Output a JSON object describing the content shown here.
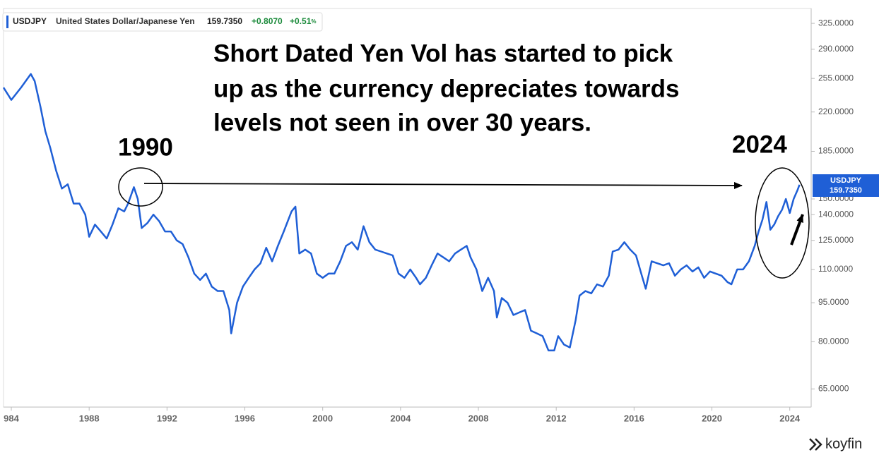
{
  "chart_data": {
    "type": "line",
    "header": {
      "symbol": "USDJPY",
      "name": "United States Dollar/Japanese Yen",
      "price": "159.7350",
      "change": "+0.8070",
      "change_pct": "+0.51",
      "pct_sign": "%"
    },
    "annotation": [
      "Short Dated Yen Vol has started to pick",
      "up as the currency depreciates towards",
      "levels not seen in over 30 years."
    ],
    "label_left": "1990",
    "label_right": "2024",
    "price_tag": {
      "symbol": "USDJPY",
      "price": "159.7350"
    },
    "brand": "koyfin",
    "log_y": true,
    "xlim": [
      1983.6,
      2025.1
    ],
    "ylim": [
      60,
      347
    ],
    "xticks": [
      {
        "value": 1984,
        "label": "984"
      },
      1988,
      1992,
      1996,
      2000,
      2004,
      2008,
      2012,
      2016,
      2020,
      2024
    ],
    "yticks": [
      {
        "value": 65,
        "label": "65.0000"
      },
      {
        "value": 80,
        "label": "80.0000"
      },
      {
        "value": 95,
        "label": "95.0000"
      },
      {
        "value": 110,
        "label": "110.0000"
      },
      {
        "value": 125,
        "label": "125.0000"
      },
      {
        "value": 140,
        "label": "140.0000"
      },
      {
        "value": 150,
        "label": "150.0000"
      },
      {
        "value": 185,
        "label": "185.0000"
      },
      {
        "value": 220,
        "label": "220.0000"
      },
      {
        "value": 255,
        "label": "255.0000"
      },
      {
        "value": 290,
        "label": "290.0000"
      },
      {
        "value": 325,
        "label": "325.0000"
      }
    ],
    "x": [
      1983.6,
      1984.0,
      1984.5,
      1985.0,
      1985.2,
      1985.5,
      1985.75,
      1986.0,
      1986.3,
      1986.6,
      1986.9,
      1987.2,
      1987.5,
      1987.8,
      1988.0,
      1988.3,
      1988.6,
      1988.9,
      1989.2,
      1989.5,
      1989.8,
      1990.0,
      1990.3,
      1990.5,
      1990.7,
      1991.0,
      1991.3,
      1991.6,
      1991.9,
      1992.2,
      1992.5,
      1992.8,
      1993.1,
      1993.4,
      1993.7,
      1994.0,
      1994.3,
      1994.6,
      1994.9,
      1995.2,
      1995.3,
      1995.6,
      1995.9,
      1996.2,
      1996.5,
      1996.8,
      1997.1,
      1997.4,
      1997.7,
      1998.0,
      1998.4,
      1998.6,
      1998.8,
      1999.1,
      1999.4,
      1999.7,
      2000.0,
      2000.3,
      2000.6,
      2000.9,
      2001.2,
      2001.5,
      2001.8,
      2002.1,
      2002.4,
      2002.7,
      2003.0,
      2003.3,
      2003.6,
      2003.9,
      2004.2,
      2004.5,
      2004.8,
      2005.0,
      2005.3,
      2005.6,
      2005.9,
      2006.2,
      2006.5,
      2006.8,
      2007.1,
      2007.4,
      2007.6,
      2007.9,
      2008.2,
      2008.5,
      2008.8,
      2008.95,
      2009.2,
      2009.5,
      2009.8,
      2010.1,
      2010.4,
      2010.7,
      2011.0,
      2011.3,
      2011.6,
      2011.9,
      2012.1,
      2012.4,
      2012.7,
      2013.0,
      2013.2,
      2013.5,
      2013.8,
      2014.1,
      2014.4,
      2014.7,
      2014.9,
      2015.2,
      2015.5,
      2015.8,
      2016.1,
      2016.4,
      2016.6,
      2016.9,
      2017.2,
      2017.5,
      2017.8,
      2018.1,
      2018.4,
      2018.7,
      2019.0,
      2019.3,
      2019.6,
      2019.9,
      2020.2,
      2020.5,
      2020.8,
      2021.0,
      2021.3,
      2021.6,
      2021.9,
      2022.2,
      2022.4,
      2022.6,
      2022.8,
      2023.0,
      2023.2,
      2023.4,
      2023.6,
      2023.8,
      2024.0,
      2024.2,
      2024.4,
      2024.5
    ],
    "series": [
      {
        "name": "USDJPY",
        "color": "#1f5fd6",
        "values": [
          245,
          232,
          245,
          260,
          252,
          225,
          202,
          188,
          170,
          157,
          160,
          147,
          147,
          140,
          127,
          134,
          130,
          126,
          134,
          144,
          142,
          147,
          158,
          150,
          132,
          135,
          140,
          136,
          130,
          130,
          125,
          123,
          116,
          108,
          105,
          108,
          102,
          100,
          100,
          92,
          83,
          95,
          102,
          106,
          110,
          113,
          121,
          114,
          122,
          130,
          142,
          145,
          118,
          120,
          118,
          108,
          106,
          108,
          108,
          114,
          122,
          124,
          120,
          133,
          124,
          120,
          119,
          118,
          117,
          108,
          106,
          110,
          106,
          103,
          106,
          112,
          118,
          116,
          114,
          118,
          120,
          122,
          116,
          110,
          100,
          106,
          100,
          89,
          97,
          95,
          90,
          91,
          92,
          84,
          83,
          82,
          77,
          77,
          82,
          79,
          78,
          88,
          98,
          100,
          99,
          103,
          102,
          107,
          119,
          120,
          124,
          120,
          117,
          107,
          101,
          114,
          113,
          112,
          113,
          107,
          110,
          112,
          109,
          111,
          106,
          109,
          108,
          107,
          104,
          103,
          110,
          110,
          114,
          122,
          130,
          137,
          148,
          131,
          134,
          139,
          143,
          150,
          141,
          150,
          156,
          159.735
        ]
      }
    ]
  }
}
